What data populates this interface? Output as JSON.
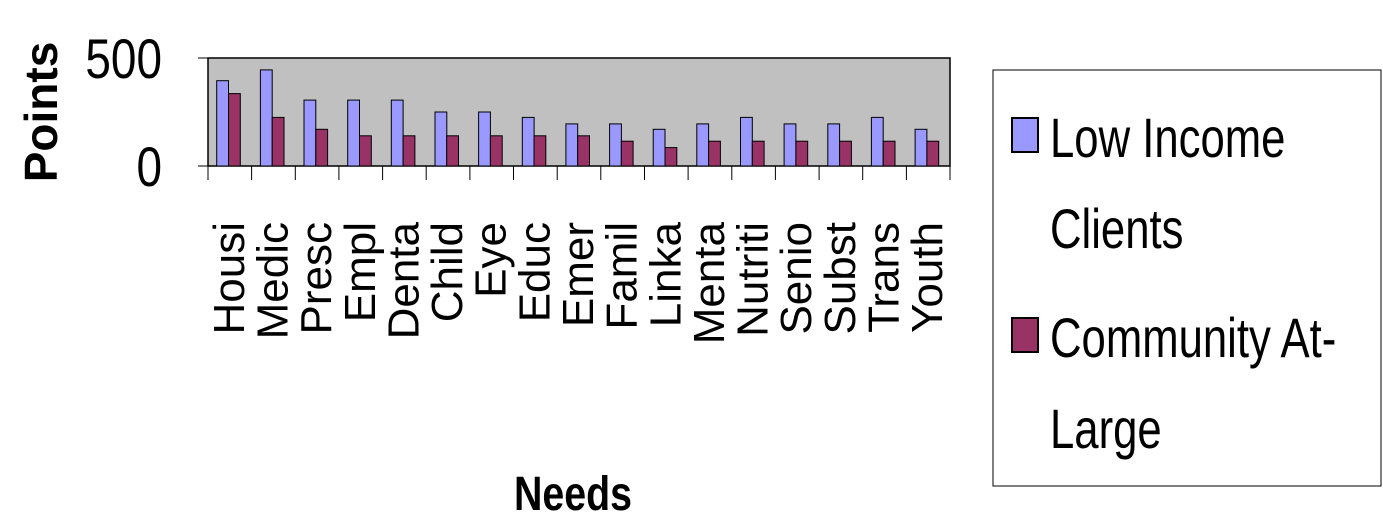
{
  "chart_data": {
    "type": "bar",
    "title": "",
    "xlabel": "Needs",
    "ylabel": "Points",
    "ylim": [
      0,
      500
    ],
    "yticks": [
      0,
      500
    ],
    "grid": false,
    "legend_position": "right",
    "categories": [
      "Housi",
      "Medic",
      "Presc",
      "Empl",
      "Denta",
      "Child",
      "Eye",
      "Educ",
      "Emer",
      "Famil",
      "Linka",
      "Menta",
      "Nutriti",
      "Senio",
      "Subst",
      "Trans",
      "Youth"
    ],
    "series": [
      {
        "name": "Low Income Clients",
        "color": "#9999ff",
        "values": [
          395,
          445,
          305,
          305,
          305,
          250,
          250,
          225,
          195,
          195,
          170,
          195,
          225,
          195,
          195,
          225,
          170
        ]
      },
      {
        "name": "Community At-Large",
        "color": "#993366",
        "values": [
          335,
          225,
          170,
          140,
          140,
          140,
          140,
          140,
          140,
          115,
          85,
          115,
          115,
          115,
          115,
          115,
          115
        ]
      }
    ],
    "legend": {
      "lines": [
        [
          "Low Income",
          "Clients"
        ],
        [
          "Community At-",
          "Large"
        ]
      ]
    },
    "colors": {
      "plot_background": "#c0c0c0",
      "bar_outline": "#000000"
    }
  }
}
